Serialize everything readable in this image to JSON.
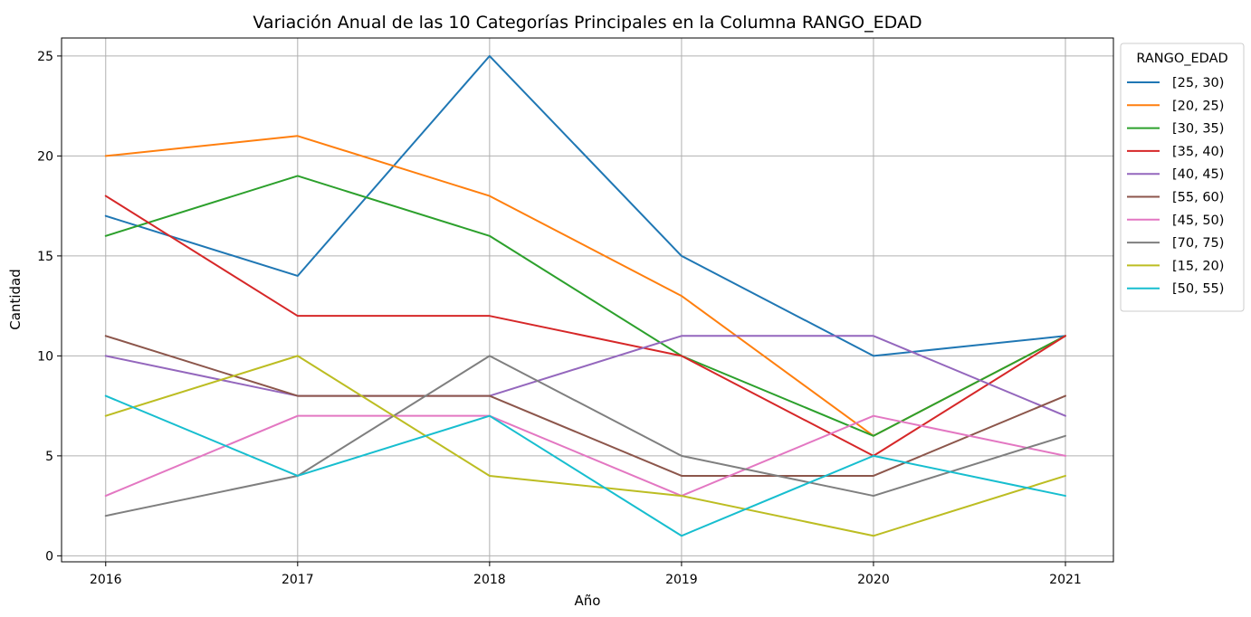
{
  "chart_data": {
    "type": "line",
    "title": "Variación Anual de las 10 Categorías Principales en la Columna RANGO_EDAD",
    "xlabel": "Año",
    "ylabel": "Cantidad",
    "x": [
      2016,
      2017,
      2018,
      2019,
      2020,
      2021
    ],
    "xlim": [
      2015.77,
      2021.25
    ],
    "ylim": [
      -0.3,
      25.9
    ],
    "yticks": [
      0,
      5,
      10,
      15,
      20,
      25
    ],
    "grid": true,
    "legend": {
      "title": "RANGO_EDAD",
      "position": "outside-top-right"
    },
    "series": [
      {
        "name": "[25, 30)",
        "color": "#1f77b4",
        "values": [
          17,
          14,
          25,
          15,
          10,
          11
        ]
      },
      {
        "name": "[20, 25)",
        "color": "#ff7f0e",
        "values": [
          20,
          21,
          18,
          13,
          6,
          11
        ]
      },
      {
        "name": "[30, 35)",
        "color": "#2ca02c",
        "values": [
          16,
          19,
          16,
          10,
          6,
          11
        ]
      },
      {
        "name": "[35, 40)",
        "color": "#d62728",
        "values": [
          18,
          12,
          12,
          10,
          5,
          11
        ]
      },
      {
        "name": "[40, 45)",
        "color": "#9467bd",
        "values": [
          10,
          8,
          8,
          11,
          11,
          7
        ]
      },
      {
        "name": "[55, 60)",
        "color": "#8c564b",
        "values": [
          11,
          8,
          8,
          4,
          4,
          8
        ]
      },
      {
        "name": "[45, 50)",
        "color": "#e377c2",
        "values": [
          3,
          7,
          7,
          3,
          7,
          5
        ]
      },
      {
        "name": "[70, 75)",
        "color": "#7f7f7f",
        "values": [
          2,
          4,
          10,
          5,
          3,
          6
        ]
      },
      {
        "name": "[15, 20)",
        "color": "#bcbd22",
        "values": [
          7,
          10,
          4,
          3,
          1,
          4
        ]
      },
      {
        "name": "[50, 55)",
        "color": "#17becf",
        "values": [
          8,
          4,
          7,
          1,
          5,
          3
        ]
      }
    ]
  }
}
